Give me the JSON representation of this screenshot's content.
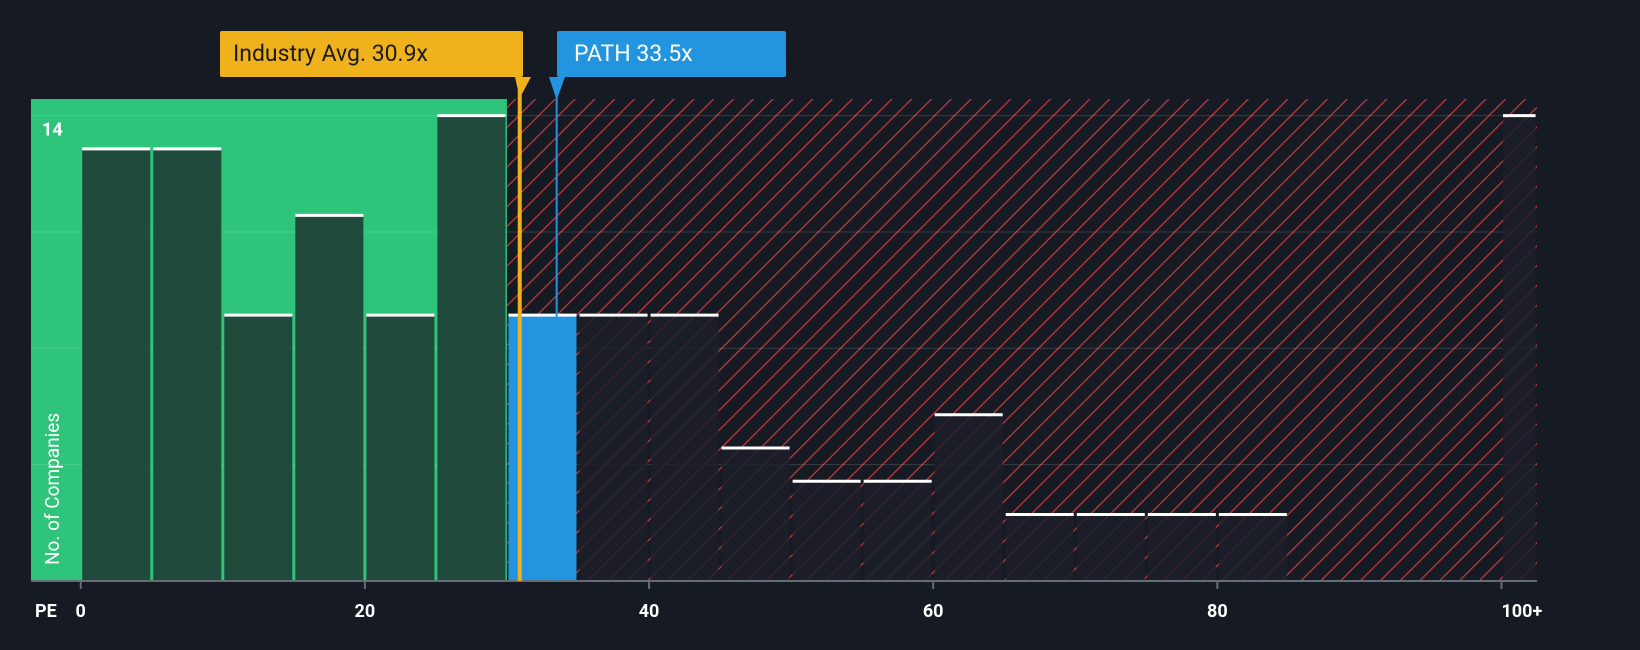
{
  "chart_data": {
    "type": "histogram",
    "x_label": "PE",
    "y_label": "No. of Companies",
    "bins": [
      0,
      5,
      10,
      15,
      20,
      25,
      30,
      35,
      40,
      45,
      50,
      55,
      60,
      65,
      70,
      75,
      80,
      85
    ],
    "values": [
      13,
      13,
      8,
      11,
      8,
      14,
      8,
      8,
      8,
      4,
      3,
      3,
      5,
      2,
      2,
      2,
      2
    ],
    "overflow": {
      "bins": [
        100,
        102.5
      ],
      "value": 14
    },
    "xlim": [
      -3.5,
      102.5
    ],
    "ylim": [
      0,
      14.5
    ],
    "xticks": [
      0,
      20,
      40,
      60,
      80,
      {
        "value": 100,
        "label": "100+"
      }
    ],
    "yticks": [
      14
    ],
    "ygrid": [
      3.5,
      7,
      10.5,
      14
    ],
    "fair_zone_end": 30,
    "colors": {
      "fair_zone": "#2ec47a",
      "fair_bar": "#1f4a3c",
      "highlight_bar": "#2394df",
      "other_bar": "#1c2029",
      "hatch": "#c8383e"
    },
    "annotations": [
      {
        "text": "Industry Avg. 30.9x",
        "x": 30.9,
        "color": "#f0b21c",
        "text_color": "#1b1b1b"
      },
      {
        "text": "PATH 33.5x",
        "x": 33.5,
        "color": "#2394df",
        "text_color": "#ffffff",
        "highlight": true
      }
    ]
  }
}
